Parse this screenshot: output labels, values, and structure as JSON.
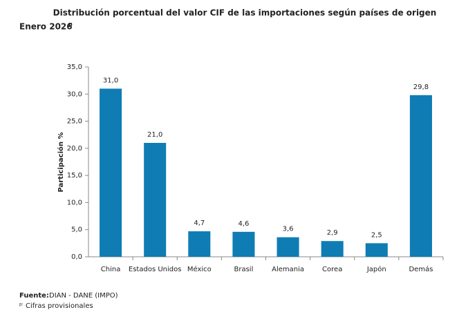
{
  "chart_data": {
    "type": "bar",
    "title": "Distribución porcentual del valor CIF de las importaciones según países de origen",
    "subtitle": "Enero 2026",
    "subtitle_superscript": "p",
    "y_label": "Participación %",
    "categories": [
      "China",
      "Estados Unidos",
      "México",
      "Brasil",
      "Alemania",
      "Corea",
      "Japón",
      "Demás"
    ],
    "values": [
      31.0,
      21.0,
      4.7,
      4.6,
      3.6,
      2.9,
      2.5,
      29.8
    ],
    "value_labels": [
      "31,0",
      "21,0",
      "4,7",
      "4,6",
      "3,6",
      "2,9",
      "2,5",
      "29,8"
    ],
    "color": "#0f7db4",
    "ylim": [
      0,
      35
    ],
    "yticks": [
      {
        "value": 0,
        "label": "0,0"
      },
      {
        "value": 5,
        "label": "5,0"
      },
      {
        "value": 10,
        "label": "10,0"
      },
      {
        "value": 15,
        "label": "15,0"
      },
      {
        "value": 20,
        "label": "20,0"
      },
      {
        "value": 25,
        "label": "25,0"
      },
      {
        "value": 30,
        "label": "30,0"
      },
      {
        "value": 35,
        "label": "35,0"
      }
    ],
    "grid": false,
    "source_label": "Fuente:",
    "source": "DIAN - DANE (IMPO)",
    "note_marker": "p:",
    "note": "Cifras provisionales"
  }
}
